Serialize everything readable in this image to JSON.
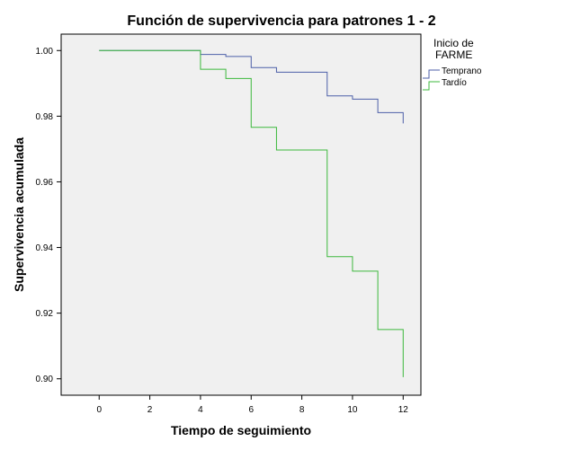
{
  "chart_data": {
    "type": "line",
    "step": true,
    "title": "Función de supervivencia para patrones 1 - 2",
    "xlabel": "Tiempo de seguimiento",
    "ylabel": "Supervivencia acumulada",
    "xlim": [
      -1.5,
      12.7
    ],
    "ylim": [
      0.895,
      1.005
    ],
    "xticks": [
      0,
      2,
      4,
      6,
      8,
      10,
      12
    ],
    "yticks": [
      0.9,
      0.92,
      0.94,
      0.96,
      0.98,
      1.0
    ],
    "xtick_labels": [
      "0",
      "2",
      "4",
      "6",
      "8",
      "10",
      "12"
    ],
    "ytick_labels": [
      "0.90",
      "0.92",
      "0.94",
      "0.96",
      "0.98",
      "1.00"
    ],
    "grid": false,
    "legend": {
      "title_line1": "Inicio de",
      "title_line2": "FARME",
      "placement": "top-right outside"
    },
    "series": [
      {
        "name": "Temprano",
        "color": "#4c5fa8",
        "x": [
          0,
          4,
          5,
          6,
          7,
          9,
          10,
          11,
          12
        ],
        "y": [
          1.0,
          0.9988,
          0.9982,
          0.9948,
          0.9934,
          0.9862,
          0.9852,
          0.9811,
          0.9778
        ]
      },
      {
        "name": "Tardío",
        "color": "#3cb83c",
        "x": [
          0,
          4,
          5,
          6,
          7,
          9,
          10,
          11,
          12
        ],
        "y": [
          1.0,
          0.9943,
          0.9915,
          0.9766,
          0.9697,
          0.9372,
          0.9328,
          0.915,
          0.9005
        ]
      }
    ]
  }
}
